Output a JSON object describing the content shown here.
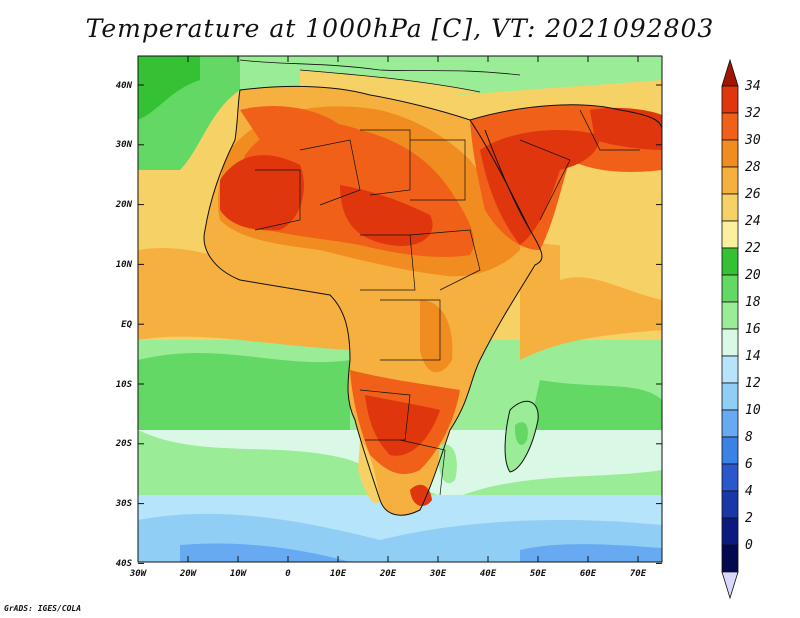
{
  "title": "Temperature at 1000hPa [C], VT: 2021092803",
  "credit": "GrADS: IGES/COLA",
  "axes": {
    "x_ticks": [
      "30W",
      "20W",
      "10W",
      "0",
      "10E",
      "20E",
      "30E",
      "40E",
      "50E",
      "60E",
      "70E"
    ],
    "y_ticks": [
      "40N",
      "30N",
      "20N",
      "10N",
      "EQ",
      "10S",
      "20S",
      "30S",
      "40S"
    ]
  },
  "colorbar": {
    "levels": [
      "34",
      "32",
      "30",
      "28",
      "26",
      "24",
      "22",
      "20",
      "18",
      "16",
      "14",
      "12",
      "10",
      "8",
      "6",
      "4",
      "2",
      "0"
    ],
    "colors": [
      "#a01600",
      "#e0360e",
      "#f06018",
      "#f08c20",
      "#f6b040",
      "#f6d266",
      "#fbf0a0",
      "#34c234",
      "#64d864",
      "#9aec96",
      "#daf8e6",
      "#b6e4fa",
      "#90cef6",
      "#68aaf2",
      "#3c82e6",
      "#2a58cc",
      "#1838a8",
      "#0c1a80",
      "#040a50",
      "#d8d8ff"
    ]
  },
  "chart_data": {
    "type": "heatmap",
    "title": "Temperature at 1000hPa [C], VT: 2021092803",
    "variable": "Temperature",
    "level": "1000hPa",
    "units": "C",
    "valid_time": "2021092803",
    "x_range": [
      "30W",
      "75E"
    ],
    "y_range": [
      "40S",
      "45N"
    ],
    "colorbar_range": [
      0,
      34
    ],
    "colorbar_step": 2
  }
}
